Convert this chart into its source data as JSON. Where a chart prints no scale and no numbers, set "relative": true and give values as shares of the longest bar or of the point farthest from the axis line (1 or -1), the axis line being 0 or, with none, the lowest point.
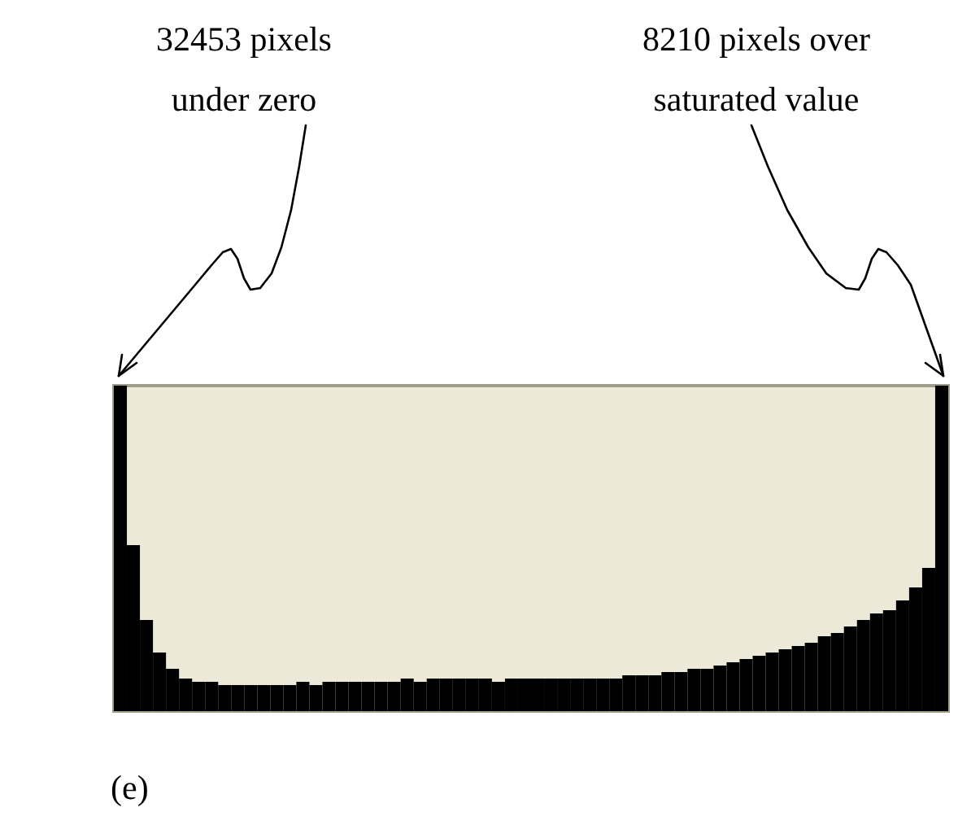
{
  "chart_data": {
    "type": "bar",
    "relative": true,
    "categories": [
      null,
      null,
      null,
      null,
      null,
      null,
      null,
      null,
      null,
      null,
      null,
      null,
      null,
      null,
      null,
      null,
      null,
      null,
      null,
      null,
      null,
      null,
      null,
      null,
      null,
      null,
      null,
      null,
      null,
      null,
      null,
      null,
      null,
      null,
      null,
      null,
      null,
      null,
      null,
      null,
      null,
      null,
      null,
      null,
      null,
      null,
      null,
      null,
      null,
      null,
      null,
      null,
      null,
      null,
      null,
      null,
      null,
      null,
      null,
      null,
      null,
      null,
      null,
      null
    ],
    "values": [
      1,
      0.51,
      0.28,
      0.18,
      0.13,
      0.1,
      0.09,
      0.09,
      0.08,
      0.08,
      0.08,
      0.08,
      0.08,
      0.08,
      0.09,
      0.08,
      0.09,
      0.09,
      0.09,
      0.09,
      0.09,
      0.09,
      0.1,
      0.09,
      0.1,
      0.1,
      0.1,
      0.1,
      0.1,
      0.09,
      0.1,
      0.1,
      0.1,
      0.1,
      0.1,
      0.1,
      0.1,
      0.1,
      0.1,
      0.11,
      0.11,
      0.11,
      0.12,
      0.12,
      0.13,
      0.13,
      0.14,
      0.15,
      0.16,
      0.17,
      0.18,
      0.19,
      0.2,
      0.21,
      0.23,
      0.24,
      0.26,
      0.28,
      0.3,
      0.31,
      0.34,
      0.38,
      0.44,
      1
    ],
    "color": "#000000",
    "annotations": [
      "32453 pixels\nunder zero",
      "8210 pixels over\nsaturated value",
      "(e)"
    ]
  }
}
